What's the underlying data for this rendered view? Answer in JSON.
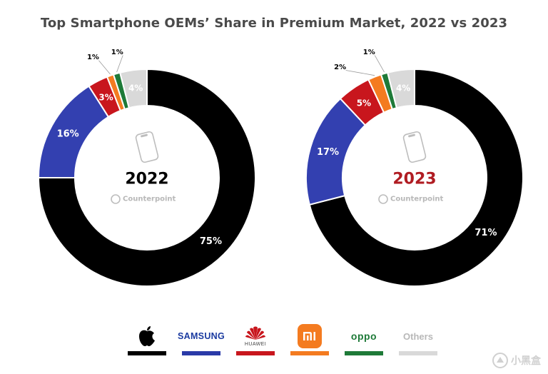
{
  "title": "Top Smartphone OEMs’ Share in Premium Market, 2022 vs 2023",
  "chart_data": [
    {
      "type": "pie",
      "center_label": "2022",
      "categories": [
        "Apple",
        "Samsung",
        "Huawei",
        "Xiaomi",
        "OPPO",
        "Others"
      ],
      "values": [
        75,
        16,
        3,
        1,
        1,
        4
      ],
      "value_labels": [
        "75%",
        "16%",
        "3%",
        "1%",
        "1%",
        "4%"
      ],
      "watermark": "Counterpoint"
    },
    {
      "type": "pie",
      "center_label": "2023",
      "categories": [
        "Apple",
        "Samsung",
        "Huawei",
        "Xiaomi",
        "OPPO",
        "Others"
      ],
      "values": [
        71,
        17,
        5,
        2,
        1,
        4
      ],
      "value_labels": [
        "71%",
        "17%",
        "5%",
        "2%",
        "1%",
        "4%"
      ],
      "watermark": "Counterpoint"
    }
  ],
  "colors": {
    "Apple": "#000000",
    "Samsung": "#3340b0",
    "Huawei": "#c8161d",
    "Xiaomi": "#f47b20",
    "OPPO": "#1e7a38",
    "Others": "#d9d9d9",
    "center_2022": "#000000",
    "center_2023": "#b01c22"
  },
  "legend": {
    "samsung_text": "SAMSUNG",
    "huawei_text": "HUAWEI",
    "oppo_text": "oppo",
    "others_text": "Others",
    "apple_icon": "apple-logo-icon",
    "xiaomi_icon": "xiaomi-logo-icon"
  },
  "site_watermark": "小黑盒"
}
